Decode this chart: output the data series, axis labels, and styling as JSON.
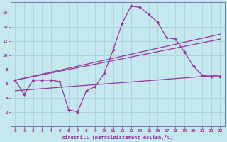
{
  "xlabel": "Windchill (Refroidissement éolien,°C)",
  "bg_color": "#c5e8ee",
  "grid_color": "#add4dc",
  "line_color": "#993399",
  "xlim": [
    -0.5,
    23.5
  ],
  "ylim": [
    0,
    17.5
  ],
  "xticks": [
    0,
    1,
    2,
    3,
    4,
    5,
    6,
    7,
    8,
    9,
    10,
    11,
    12,
    13,
    14,
    15,
    16,
    17,
    18,
    19,
    20,
    21,
    22,
    23
  ],
  "yticks": [
    2,
    4,
    6,
    8,
    10,
    12,
    14,
    16
  ],
  "line1_x": [
    0,
    1,
    2,
    3,
    4,
    5,
    6,
    7,
    8,
    9,
    10,
    11,
    12,
    13,
    14,
    15,
    16,
    17,
    18,
    19,
    20,
    21,
    22,
    23
  ],
  "line1_y": [
    6.5,
    4.5,
    6.5,
    6.5,
    6.5,
    6.3,
    2.3,
    2.0,
    5.0,
    5.6,
    7.5,
    10.8,
    14.5,
    17.0,
    16.8,
    15.8,
    14.7,
    12.5,
    12.3,
    10.5,
    8.5,
    7.2,
    7.0,
    7.0
  ],
  "line2_x": [
    0,
    23
  ],
  "line2_y": [
    6.5,
    13.0
  ],
  "line3_x": [
    0,
    23
  ],
  "line3_y": [
    6.5,
    12.3
  ],
  "line4_x": [
    0,
    23
  ],
  "line4_y": [
    5.0,
    7.2
  ],
  "spine_color": "#7777aa"
}
